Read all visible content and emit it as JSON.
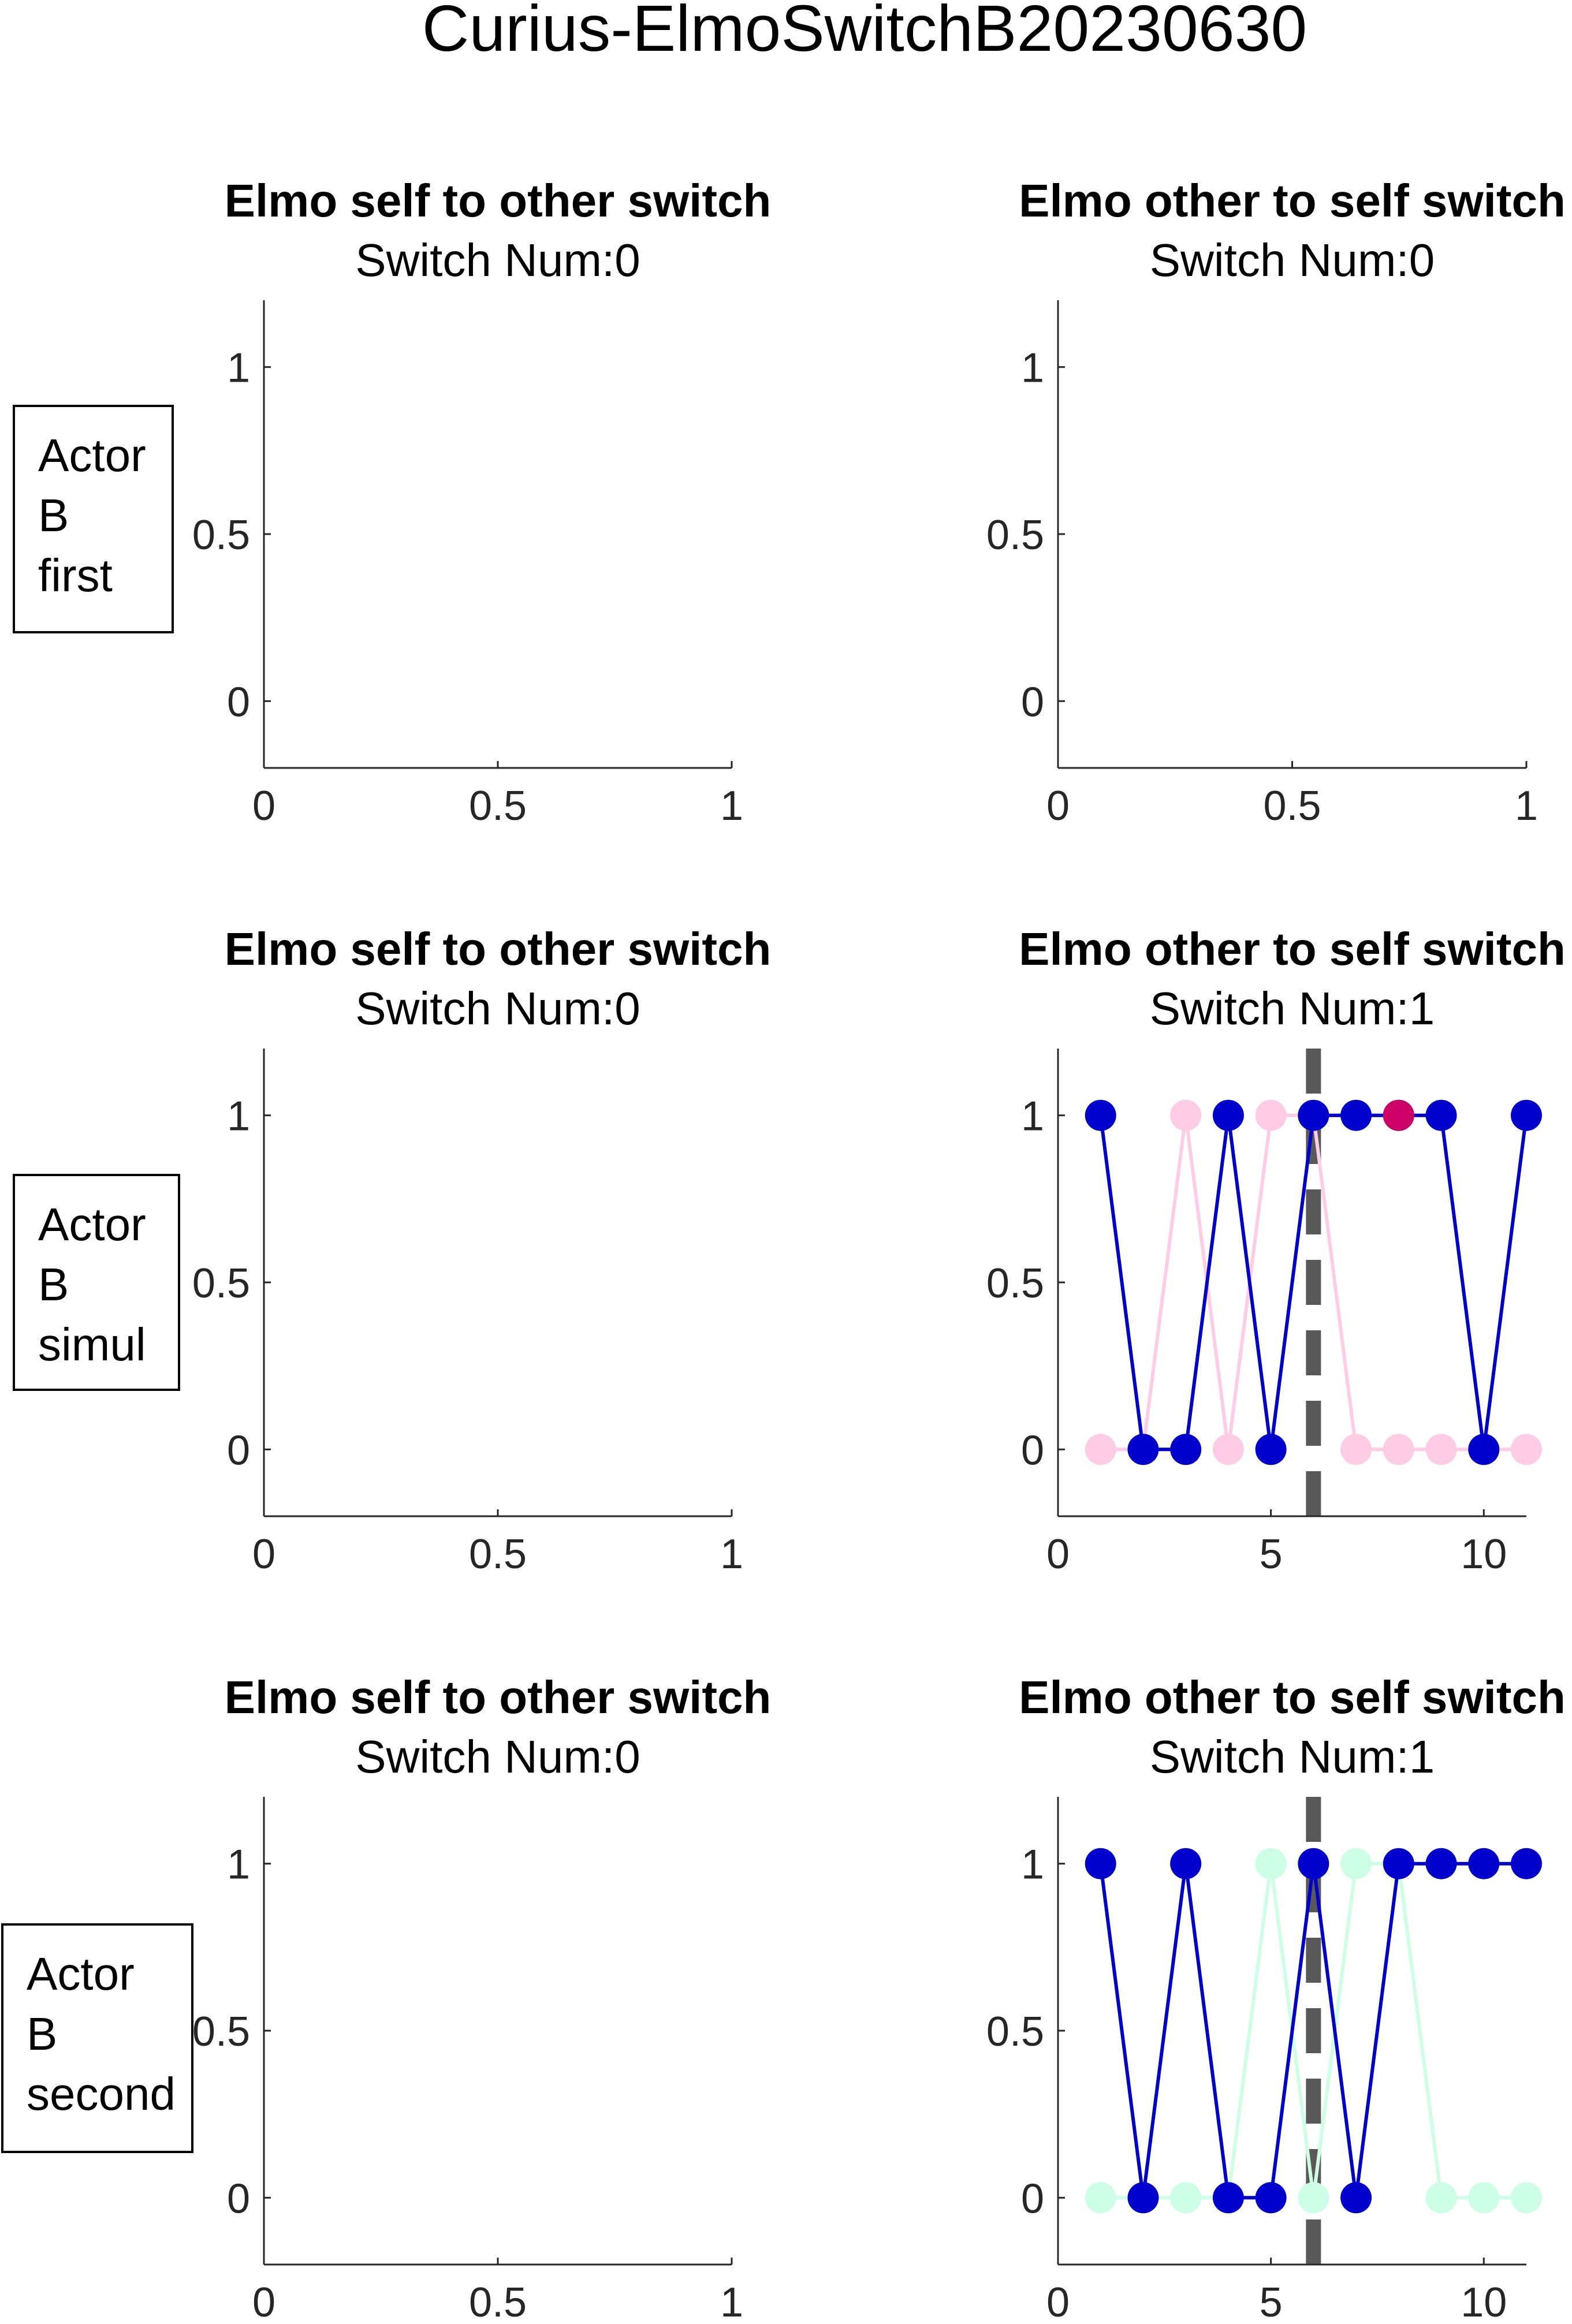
{
  "figure_title": "Curius-ElmoSwitchB20230630",
  "row_labels": [
    [
      "Actor",
      "B",
      "first"
    ],
    [
      "Actor",
      "B",
      "simul"
    ],
    [
      "Actor",
      "B",
      "second"
    ]
  ],
  "colors": {
    "elmo": "#0000cc",
    "partner_simul": "#ffcce6",
    "partner_second": "#ccffe6",
    "highlight": "#cc0066",
    "switch_line": "#595959"
  },
  "chart_data": [
    {
      "type": "line",
      "row": 0,
      "col": 0,
      "title": "Elmo self to other switch",
      "subtitle": "Switch Num:0",
      "xlim": [
        0,
        1
      ],
      "ylim": [
        -0.2,
        1.2
      ],
      "xticks": [
        0,
        0.5,
        1
      ],
      "xticklabels": [
        "0",
        "0.5",
        "1"
      ],
      "yticks": [
        0,
        0.5,
        1
      ],
      "yticklabels": [
        "0",
        "0.5",
        "1"
      ],
      "series": []
    },
    {
      "type": "line",
      "row": 0,
      "col": 1,
      "title": "Elmo other to self switch",
      "subtitle": "Switch Num:0",
      "xlim": [
        0,
        1
      ],
      "ylim": [
        -0.2,
        1.2
      ],
      "xticks": [
        0,
        0.5,
        1
      ],
      "xticklabels": [
        "0",
        "0.5",
        "1"
      ],
      "yticks": [
        0,
        0.5,
        1
      ],
      "yticklabels": [
        "0",
        "0.5",
        "1"
      ],
      "series": []
    },
    {
      "type": "line",
      "row": 1,
      "col": 0,
      "title": "Elmo self to other switch",
      "subtitle": "Switch Num:0",
      "xlim": [
        0,
        1
      ],
      "ylim": [
        -0.2,
        1.2
      ],
      "xticks": [
        0,
        0.5,
        1
      ],
      "xticklabels": [
        "0",
        "0.5",
        "1"
      ],
      "yticks": [
        0,
        0.5,
        1
      ],
      "yticklabels": [
        "0",
        "0.5",
        "1"
      ],
      "series": []
    },
    {
      "type": "line",
      "row": 1,
      "col": 1,
      "title": "Elmo other to self switch",
      "subtitle": "Switch Num:1",
      "xlim": [
        0,
        11
      ],
      "ylim": [
        -0.2,
        1.2
      ],
      "xticks": [
        0,
        5,
        10
      ],
      "xticklabels": [
        "0",
        "5",
        "10"
      ],
      "yticks": [
        0,
        0.5,
        1
      ],
      "yticklabels": [
        "0",
        "0.5",
        "1"
      ],
      "switch_x": 6,
      "series": [
        {
          "color": "#ffcce6",
          "x": [
            1,
            2,
            3,
            4,
            5,
            6,
            7,
            8,
            9,
            10,
            11
          ],
          "y": [
            0,
            0,
            1,
            0,
            1,
            1,
            0,
            0,
            0,
            0,
            0
          ]
        },
        {
          "color": "#0000cc",
          "x": [
            1,
            2,
            3,
            4,
            5,
            6,
            7,
            8,
            9,
            10,
            11
          ],
          "y": [
            1,
            0,
            0,
            1,
            0,
            1,
            1,
            1,
            1,
            0,
            1
          ]
        }
      ],
      "highlight_points": [
        {
          "x": 8,
          "y": 1,
          "color": "#cc0066"
        }
      ]
    },
    {
      "type": "line",
      "row": 2,
      "col": 0,
      "title": "Elmo self to other switch",
      "subtitle": "Switch Num:0",
      "xlim": [
        0,
        1
      ],
      "ylim": [
        -0.2,
        1.2
      ],
      "xticks": [
        0,
        0.5,
        1
      ],
      "xticklabels": [
        "0",
        "0.5",
        "1"
      ],
      "yticks": [
        0,
        0.5,
        1
      ],
      "yticklabels": [
        "0",
        "0.5",
        "1"
      ],
      "series": []
    },
    {
      "type": "line",
      "row": 2,
      "col": 1,
      "title": "Elmo other to self switch",
      "subtitle": "Switch Num:1",
      "xlim": [
        0,
        11
      ],
      "ylim": [
        -0.2,
        1.2
      ],
      "xticks": [
        0,
        5,
        10
      ],
      "xticklabels": [
        "0",
        "5",
        "10"
      ],
      "yticks": [
        0,
        0.5,
        1
      ],
      "yticklabels": [
        "0",
        "0.5",
        "1"
      ],
      "switch_x": 6,
      "series": [
        {
          "color": "#ccffe6",
          "x": [
            1,
            2,
            3,
            4,
            5,
            6,
            7,
            8,
            9,
            10,
            11
          ],
          "y": [
            0,
            0,
            0,
            0,
            1,
            0,
            1,
            1,
            0,
            0,
            0
          ]
        },
        {
          "color": "#0000cc",
          "x": [
            1,
            2,
            3,
            4,
            5,
            6,
            7,
            8,
            9,
            10,
            11
          ],
          "y": [
            1,
            0,
            1,
            0,
            0,
            1,
            0,
            1,
            1,
            1,
            1
          ]
        }
      ],
      "highlight_points": []
    }
  ]
}
